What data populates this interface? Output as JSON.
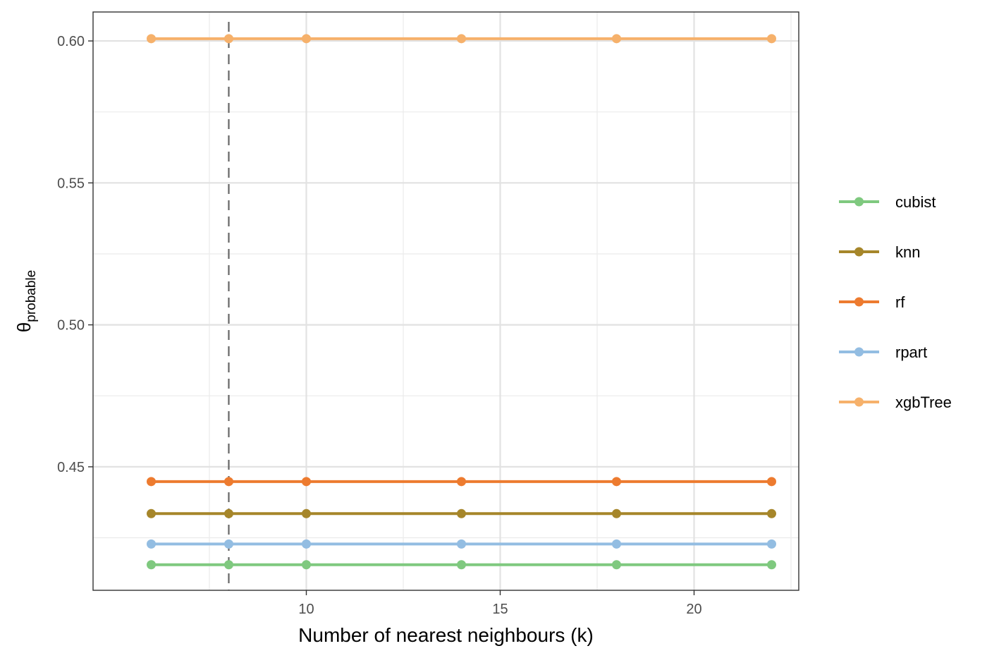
{
  "chart_data": {
    "type": "line",
    "title": "",
    "xlabel": "Number of nearest neighbours (k)",
    "ylabel": {
      "symbol": "θ",
      "subscript": "probable"
    },
    "x": [
      6,
      8,
      10,
      14,
      18,
      22
    ],
    "xlim": [
      4.5,
      22.7
    ],
    "ylim": [
      0.4065,
      0.6102
    ],
    "xticks": [
      10,
      15,
      20
    ],
    "xtick_labels": [
      "10",
      "15",
      "20"
    ],
    "yticks": [
      0.45,
      0.5,
      0.55,
      0.6
    ],
    "ytick_labels": [
      "0.45",
      "0.50",
      "0.55",
      "0.60"
    ],
    "grid": true,
    "reference_line": {
      "orientation": "vertical",
      "x": 8,
      "style": "dashed",
      "color": "#666666"
    },
    "legend_position": "right",
    "series": [
      {
        "name": "cubist",
        "color": "#7fc97f",
        "values": [
          0.4155,
          0.4155,
          0.4155,
          0.4155,
          0.4155,
          0.4155
        ]
      },
      {
        "name": "knn",
        "color": "#a6862a",
        "values": [
          0.4335,
          0.4335,
          0.4335,
          0.4335,
          0.4335,
          0.4335
        ]
      },
      {
        "name": "rf",
        "color": "#ed7b2f",
        "values": [
          0.4448,
          0.4448,
          0.4448,
          0.4448,
          0.4448,
          0.4448
        ]
      },
      {
        "name": "rpart",
        "color": "#93bde2",
        "values": [
          0.4228,
          0.4228,
          0.4228,
          0.4228,
          0.4228,
          0.4228
        ]
      },
      {
        "name": "xgbTree",
        "color": "#f6b16b",
        "values": [
          0.6008,
          0.6008,
          0.6008,
          0.6008,
          0.6008,
          0.6008
        ]
      }
    ]
  }
}
